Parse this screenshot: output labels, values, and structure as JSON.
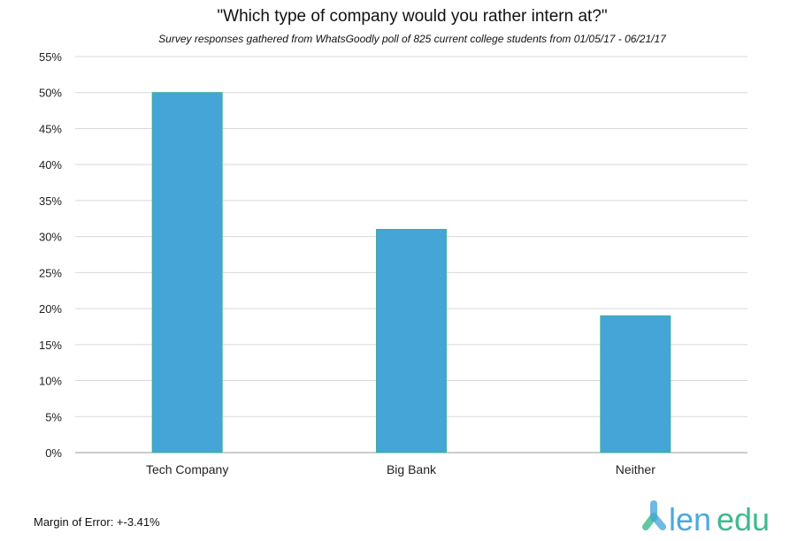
{
  "chart_data": {
    "type": "bar",
    "title": "\"Which type of company would you rather intern at?\"",
    "subtitle": "Survey responses gathered from WhatsGoodly poll of 825 current college students from 01/05/17 - 06/21/17",
    "categories": [
      "Tech Company",
      "Big Bank",
      "Neither"
    ],
    "values": [
      50,
      31,
      19
    ],
    "ylim": [
      0,
      55
    ],
    "yticks": [
      0,
      5,
      10,
      15,
      20,
      25,
      30,
      35,
      40,
      45,
      50,
      55
    ],
    "ytick_format": "%",
    "grid": true,
    "bar_color": "#45a5d6",
    "footnote": "Margin of Error: +-3.41%"
  },
  "logo": {
    "text": "lendedu",
    "color_blue": "#4aa8df",
    "color_green": "#3dba8a"
  }
}
